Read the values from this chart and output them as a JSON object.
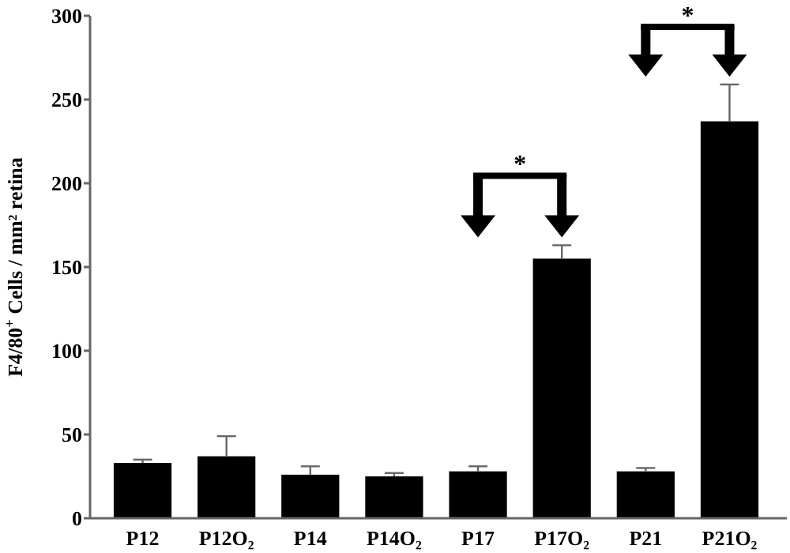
{
  "chart_data": {
    "type": "bar",
    "ylabel": "F4/80$^{+}$ Cells / mm² retina",
    "categories": [
      "P12",
      "P12O₂",
      "P14",
      "P14O₂",
      "P17",
      "P17O₂",
      "P21",
      "P21O₂"
    ],
    "values": [
      33,
      37,
      26,
      25,
      28,
      155,
      28,
      237
    ],
    "errors": [
      [
        33,
        35
      ],
      [
        37,
        49
      ],
      [
        26,
        31
      ],
      [
        25,
        27
      ],
      [
        28,
        31
      ],
      [
        155,
        163
      ],
      [
        28,
        30
      ],
      [
        237,
        259
      ]
    ],
    "color": "#000000",
    "ylim": [
      0,
      300
    ],
    "yticks": [
      0,
      50,
      100,
      150,
      200,
      250,
      300
    ],
    "grid": false,
    "annotations": [
      "*",
      "*"
    ]
  }
}
